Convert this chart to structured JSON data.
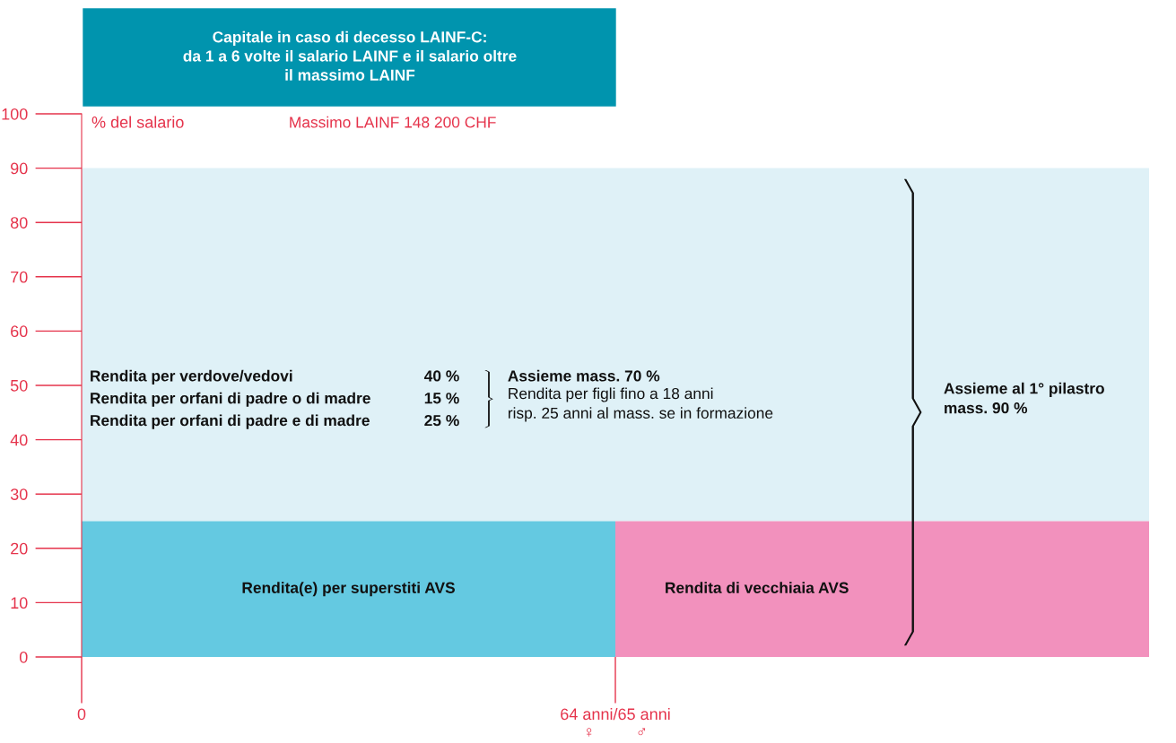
{
  "chart_data": {
    "type": "area",
    "title": "Capitale in caso di decesso LAINF-C:\nda 1 a 6 volte il salario LAINF e il salario oltre\nil massimo LAINF",
    "ylabel": "% del salario",
    "series": [
      {
        "name": "Rendita(e) per superstiti AVS",
        "color": "#64c9e1",
        "values": [
          25,
          25,
          null
        ]
      },
      {
        "name": "Rendita di vecchiaia AVS",
        "color": "#f291bd",
        "values": [
          null,
          25,
          25
        ]
      }
    ],
    "bands": [
      {
        "axis": "y",
        "from": 25,
        "to": 90,
        "color": "#dff1f7"
      }
    ],
    "annotations": [
      "Massimo LAINF 148 200 CHF",
      "Rendita per verdove/vedovi",
      "40 %",
      "Rendita per orfani di padre o di madre",
      "15 %",
      "Rendita per orfani di padre e di madre",
      "25 %",
      "Assieme mass. 70 %",
      "Rendita per figli fino a 18 anni\nrisp. 25 anni al mass. se in formazione",
      "Assieme al 1° pilastro\nmass. 90 %"
    ],
    "categories": [
      "0",
      "64 anni/65 anni\n♀         ♂",
      null
    ],
    "ylim": [
      0,
      100
    ],
    "yticks": [
      0,
      10,
      20,
      30,
      40,
      50,
      60,
      70,
      80,
      90,
      100
    ],
    "grid": false,
    "legend": false
  }
}
